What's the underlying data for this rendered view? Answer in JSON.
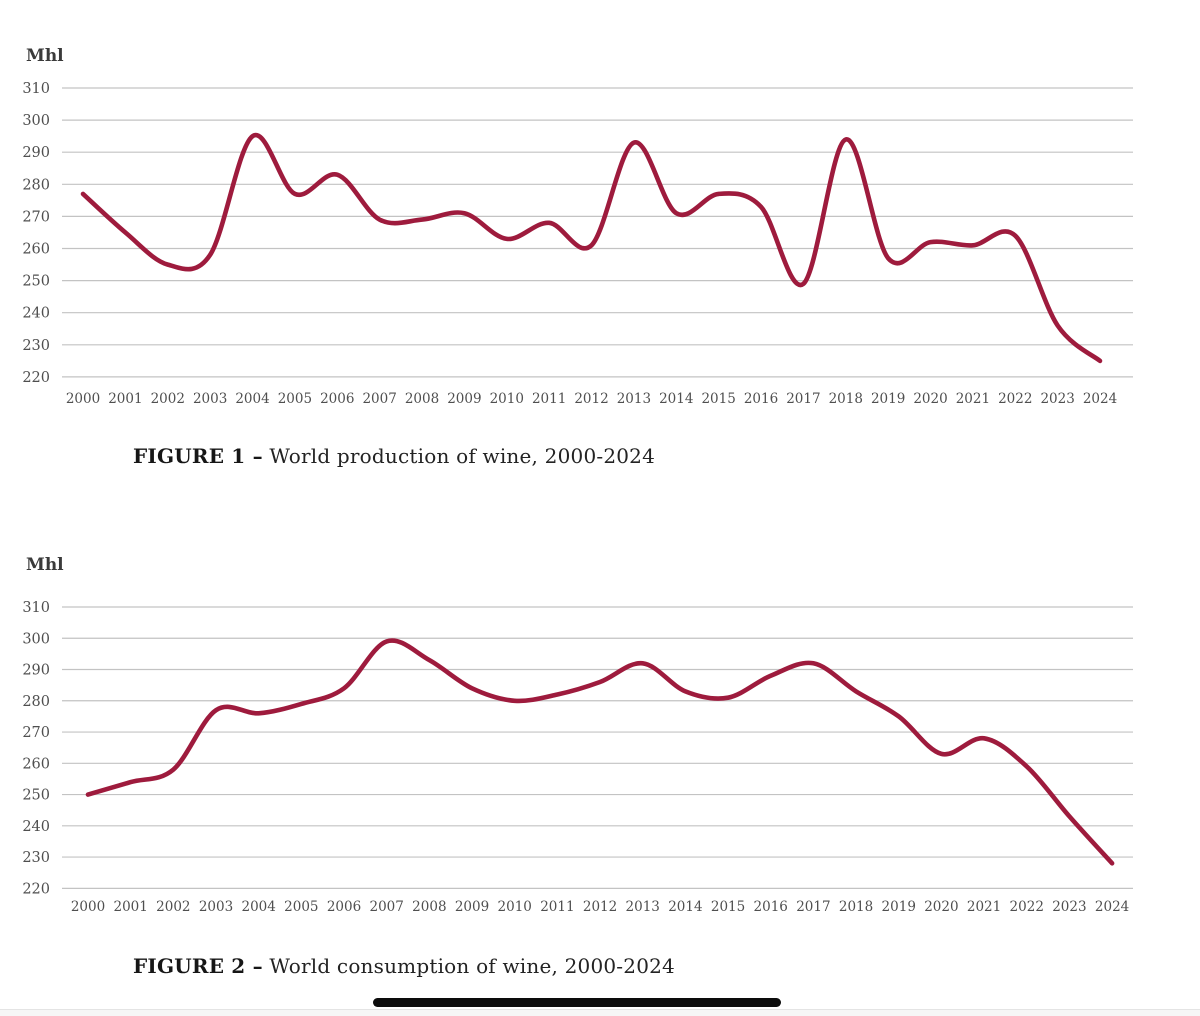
{
  "page": {
    "unit_label": "Mhl",
    "colors": {
      "line": "#9e1b3d",
      "grid": "#c3c3c3",
      "tick_text": "#4f4f4f",
      "unit_text": "#3a3a3a",
      "caption_text": "#232323",
      "home_bar": "#0c0c0c"
    }
  },
  "figure1": {
    "caption_label": "FIGURE 1 –",
    "caption_text": "World production of wine, 2000-2024"
  },
  "figure2": {
    "caption_label": "FIGURE 2 –",
    "caption_text": "World consumption of wine, 2000-2024"
  },
  "chart_data": [
    {
      "type": "line",
      "title": "World production of wine, 2000-2024",
      "unit": "Mhl",
      "ylabel": "Mhl",
      "xlabel": "",
      "ylim": [
        220,
        310
      ],
      "ytick_step": 10,
      "yticks": [
        310,
        300,
        290,
        280,
        270,
        260,
        250,
        240,
        230,
        220
      ],
      "grid": true,
      "legend_position": "none",
      "x": [
        2000,
        2001,
        2002,
        2003,
        2004,
        2005,
        2006,
        2007,
        2008,
        2009,
        2010,
        2011,
        2012,
        2013,
        2014,
        2015,
        2016,
        2017,
        2018,
        2019,
        2020,
        2021,
        2022,
        2023,
        2024
      ],
      "values": [
        277,
        265,
        255,
        258,
        295,
        277,
        283,
        269,
        269,
        271,
        263,
        268,
        261,
        293,
        271,
        277,
        273,
        249,
        294,
        257,
        262,
        261,
        264,
        236,
        225
      ]
    },
    {
      "type": "line",
      "title": "World consumption of wine, 2000-2024",
      "unit": "Mhl",
      "ylabel": "Mhl",
      "xlabel": "",
      "ylim": [
        220,
        310
      ],
      "ytick_step": 10,
      "yticks": [
        310,
        300,
        290,
        280,
        270,
        260,
        250,
        240,
        230,
        220
      ],
      "grid": true,
      "legend_position": "none",
      "x": [
        2000,
        2001,
        2002,
        2003,
        2004,
        2005,
        2006,
        2007,
        2008,
        2009,
        2010,
        2011,
        2012,
        2013,
        2014,
        2015,
        2016,
        2017,
        2018,
        2019,
        2020,
        2021,
        2022,
        2023,
        2024
      ],
      "values": [
        250,
        254,
        258,
        277,
        276,
        279,
        284,
        299,
        293,
        284,
        280,
        282,
        286,
        292,
        283,
        281,
        288,
        292,
        283,
        275,
        263,
        268,
        259,
        243,
        228
      ]
    }
  ]
}
